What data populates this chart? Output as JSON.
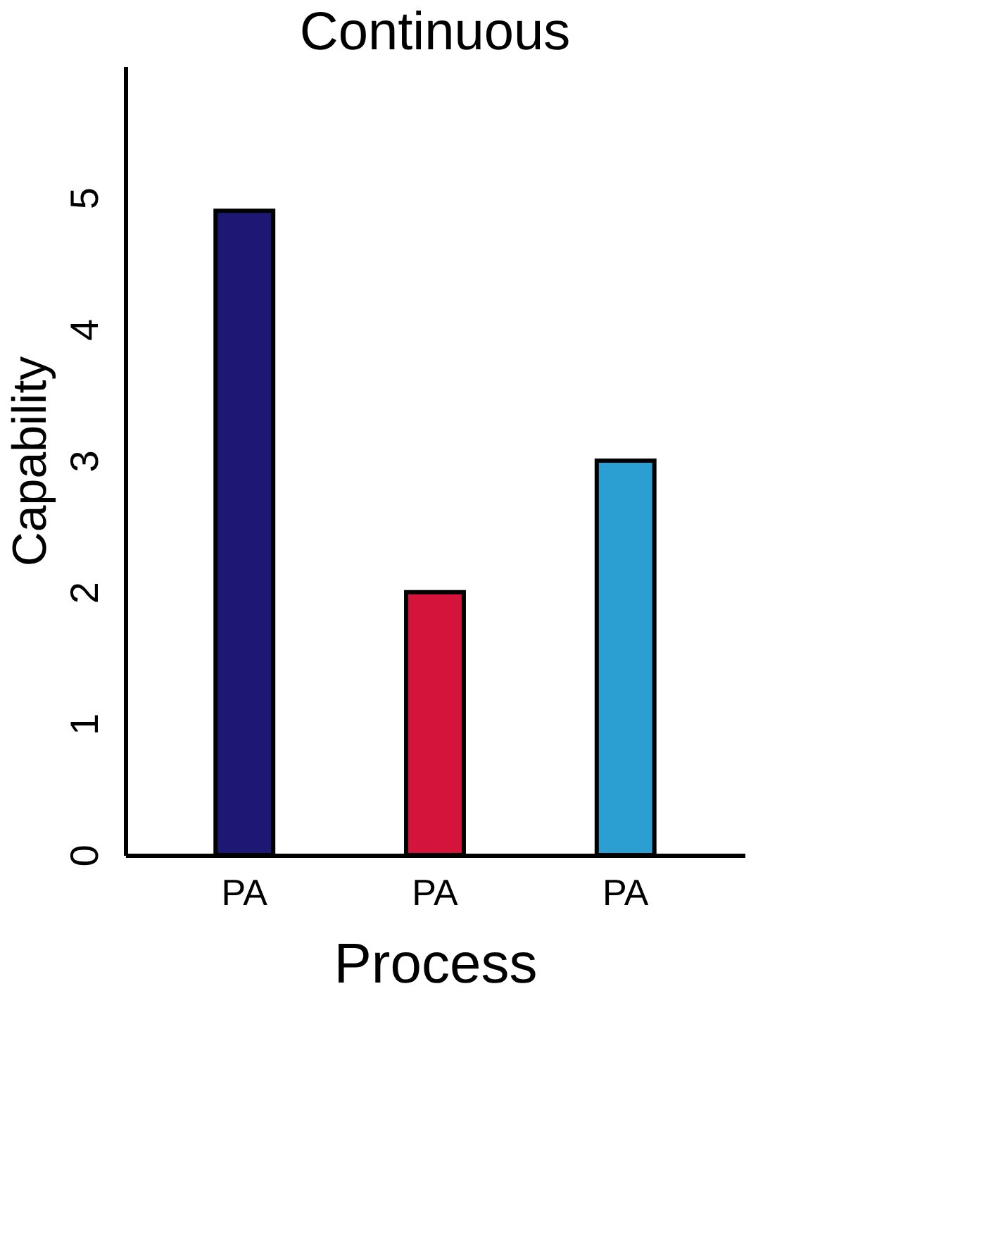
{
  "chart_data": {
    "type": "bar",
    "title": "Continuous",
    "xlabel": "Process",
    "ylabel": "Capability",
    "categories": [
      "PA",
      "PA",
      "PA"
    ],
    "values": [
      4.9,
      2.0,
      3.0
    ],
    "colors": [
      "#1c1873",
      "#d4143a",
      "#2b9fd2"
    ],
    "ylim": [
      0,
      6
    ],
    "yticks": [
      0,
      1,
      2,
      3,
      4,
      5
    ],
    "grid": false
  }
}
